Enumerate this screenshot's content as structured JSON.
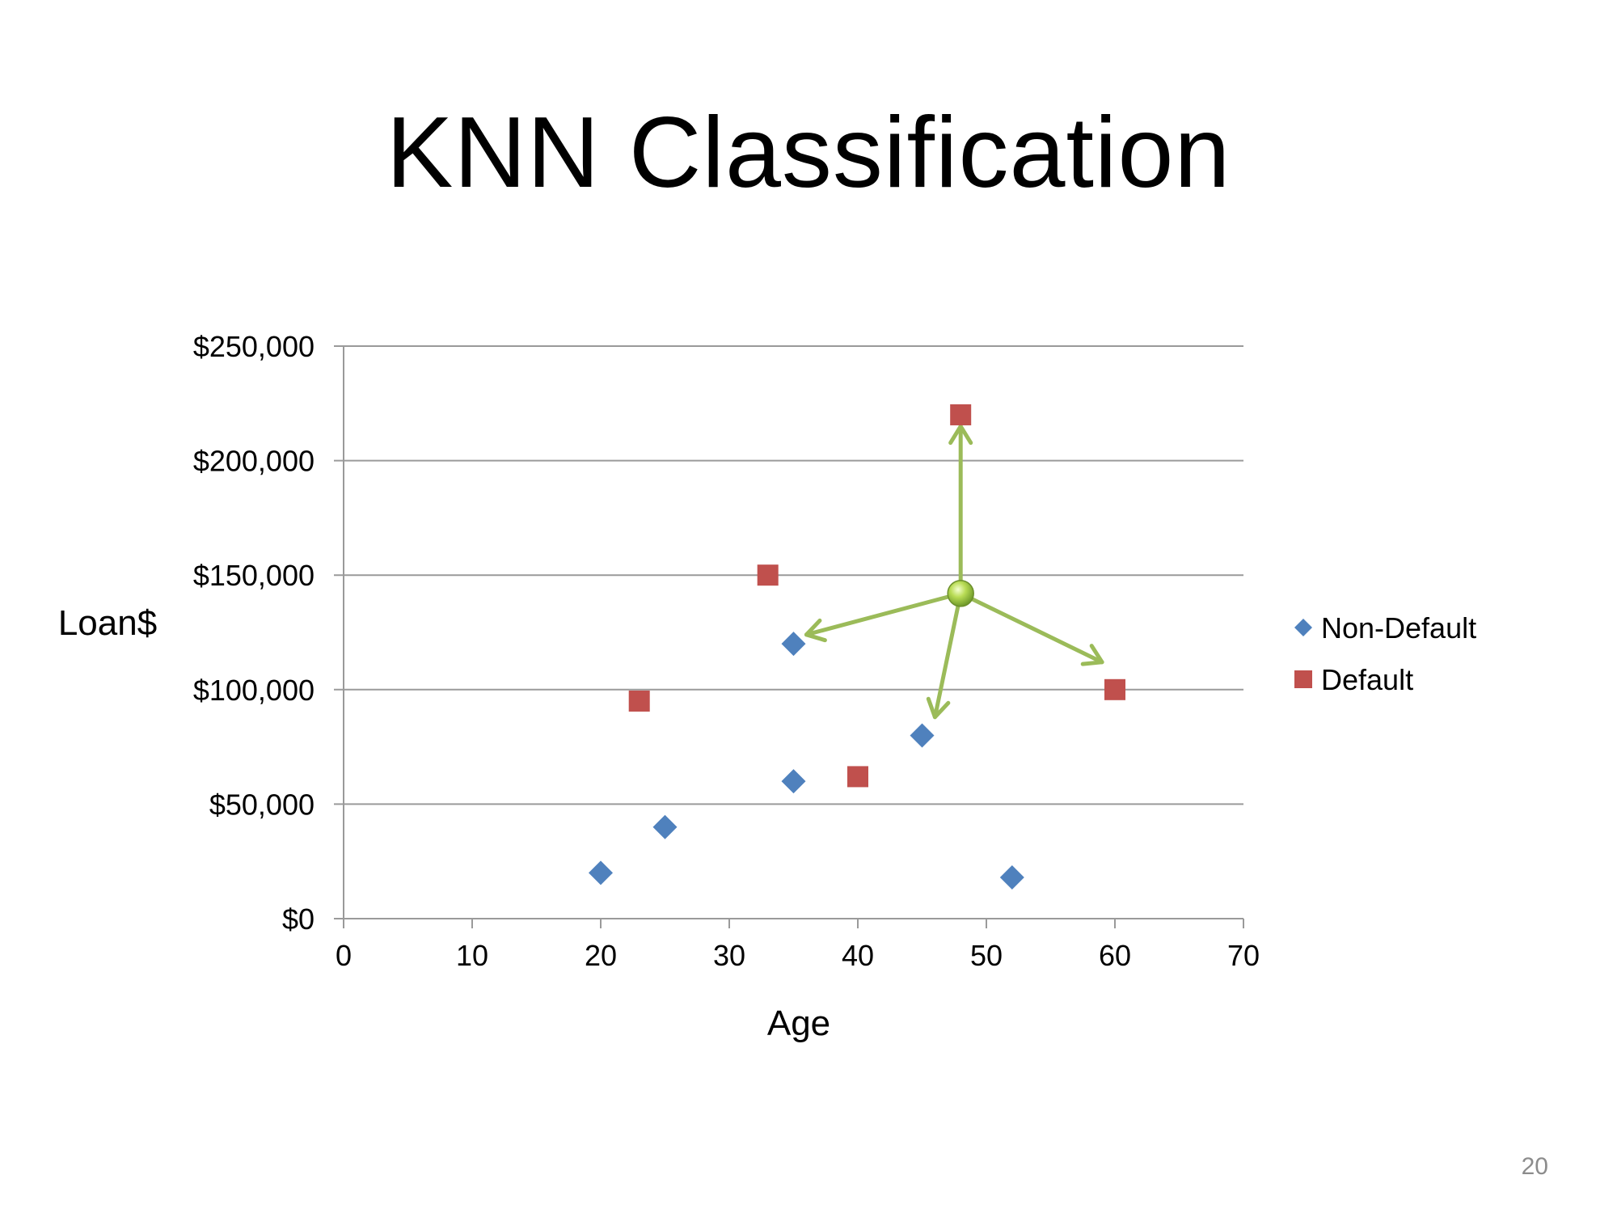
{
  "slide": {
    "title": "KNN Classification",
    "page_number": "20"
  },
  "colors": {
    "non_default": "#4F81BD",
    "default": "#C0504D",
    "query": "#9BBB59",
    "grid": "#9a9a9a"
  },
  "chart_data": {
    "type": "scatter",
    "title": "",
    "xlabel": "Age",
    "ylabel": "Loan$",
    "xlim": [
      0,
      70
    ],
    "ylim": [
      0,
      250000
    ],
    "x_ticks": [
      0,
      10,
      20,
      30,
      40,
      50,
      60,
      70
    ],
    "x_tick_labels": [
      "0",
      "10",
      "20",
      "30",
      "40",
      "50",
      "60",
      "70"
    ],
    "y_ticks": [
      0,
      50000,
      100000,
      150000,
      200000,
      250000
    ],
    "y_tick_labels": [
      "$0",
      "$50,000",
      "$100,000",
      "$150,000",
      "$200,000",
      "$250,000"
    ],
    "grid": "horizontal",
    "legend_position": "right",
    "series": [
      {
        "name": "Non-Default",
        "marker": "diamond",
        "color": "#4F81BD",
        "points": [
          [
            20,
            20000
          ],
          [
            25,
            40000
          ],
          [
            35,
            60000
          ],
          [
            35,
            120000
          ],
          [
            45,
            80000
          ],
          [
            52,
            18000
          ]
        ]
      },
      {
        "name": "Default",
        "marker": "square",
        "color": "#C0504D",
        "points": [
          [
            23,
            95000
          ],
          [
            33,
            150000
          ],
          [
            40,
            62000
          ],
          [
            48,
            220000
          ],
          [
            60,
            100000
          ]
        ]
      }
    ],
    "query_point": {
      "x": 48,
      "y": 142000,
      "color": "#9BBB59"
    },
    "neighbor_arrows": [
      {
        "to": [
          48,
          215000
        ]
      },
      {
        "to": [
          36,
          124000
        ]
      },
      {
        "to": [
          46,
          88000
        ]
      },
      {
        "to": [
          59,
          112000
        ]
      }
    ]
  }
}
